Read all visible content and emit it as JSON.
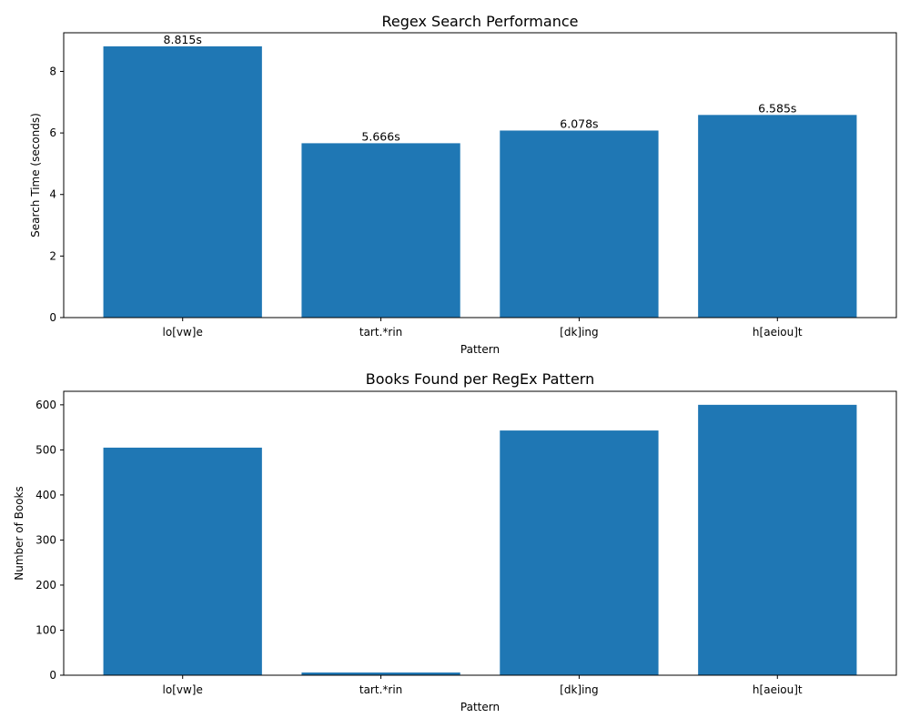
{
  "chart_data": [
    {
      "type": "bar",
      "title": "Regex Search Performance",
      "xlabel": "Pattern",
      "ylabel": "Search Time (seconds)",
      "categories": [
        "lo[vw]e",
        "tart.*rin",
        "[dk]ing",
        "h[aeiou]t"
      ],
      "values": [
        8.815,
        5.666,
        6.078,
        6.585
      ],
      "data_labels": [
        "8.815s",
        "5.666s",
        "6.078s",
        "6.585s"
      ],
      "yticks": [
        0,
        2,
        4,
        6,
        8
      ],
      "ylim": [
        0,
        9.256
      ],
      "bar_color": "#1f77b4",
      "grid": false
    },
    {
      "type": "bar",
      "title": "Books Found per RegEx Pattern",
      "xlabel": "Pattern",
      "ylabel": "Number of Books",
      "categories": [
        "lo[vw]e",
        "tart.*rin",
        "[dk]ing",
        "h[aeiou]t"
      ],
      "values": [
        505,
        6,
        543,
        600
      ],
      "yticks": [
        0,
        100,
        200,
        300,
        400,
        500,
        600
      ],
      "ylim": [
        0,
        630
      ],
      "bar_color": "#1f77b4",
      "grid": false
    }
  ]
}
